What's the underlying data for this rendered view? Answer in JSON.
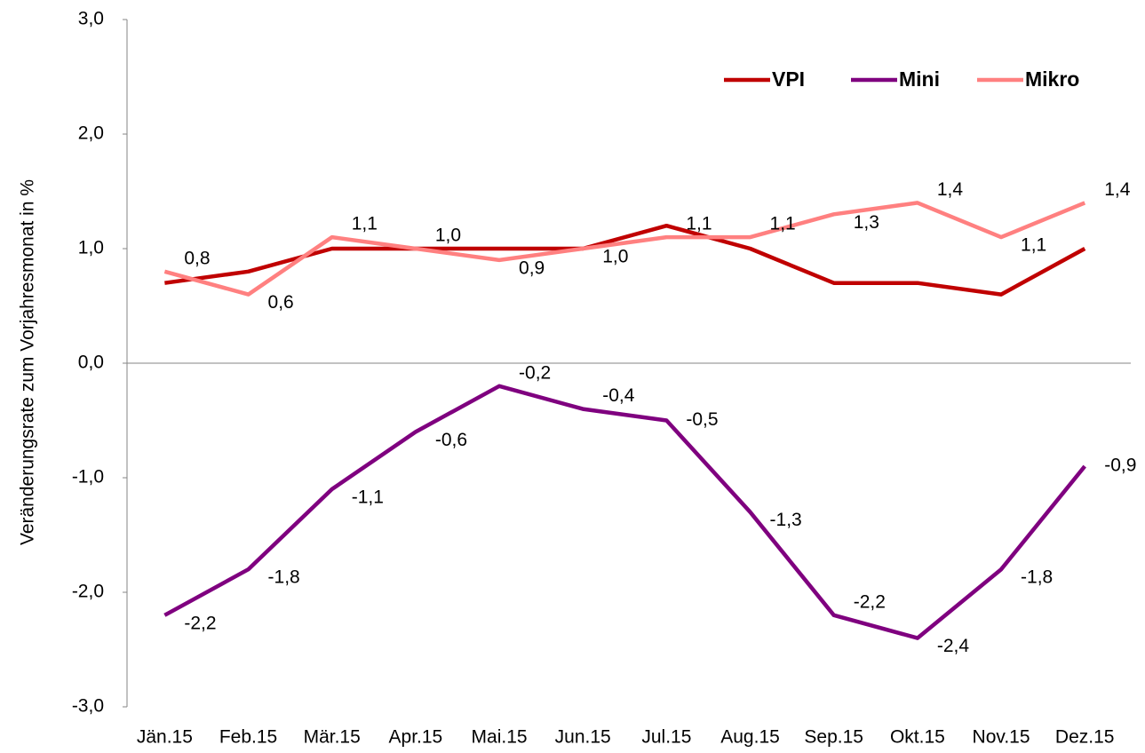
{
  "chart_data": {
    "type": "line",
    "y_label": "Veränderungsrate zum Vorjahresmonat in %",
    "categories": [
      "Jän.15",
      "Feb.15",
      "Mär.15",
      "Apr.15",
      "Mai.15",
      "Jun.15",
      "Jul.15",
      "Aug.15",
      "Sep.15",
      "Okt.15",
      "Nov.15",
      "Dez.15"
    ],
    "series": [
      {
        "name": "VPI",
        "color": "#c00000",
        "values": [
          0.7,
          0.8,
          1.0,
          1.0,
          1.0,
          1.0,
          1.2,
          1.0,
          0.7,
          0.7,
          0.6,
          1.0
        ]
      },
      {
        "name": "Mini",
        "color": "#7f007f",
        "values": [
          -2.2,
          -1.8,
          -1.1,
          -0.6,
          -0.2,
          -0.4,
          -0.5,
          -1.3,
          -2.2,
          -2.4,
          -1.8,
          -0.9
        ],
        "value_labels": [
          "-2,2",
          "-1,8",
          "-1,1",
          "-0,6",
          "-0,2",
          "-0,4",
          "-0,5",
          "-1,3",
          "-2,2",
          "-2,4",
          "-1,8",
          "-0,9"
        ]
      },
      {
        "name": "Mikro",
        "color": "#ff8080",
        "values": [
          0.8,
          0.6,
          1.1,
          1.0,
          0.9,
          1.0,
          1.1,
          1.1,
          1.3,
          1.4,
          1.1,
          1.4
        ],
        "value_labels": [
          "0,8",
          "0,6",
          "1,1",
          "1,0",
          "0,9",
          "1,0",
          "1,1",
          "1,1",
          "1,3",
          "1,4",
          "1,1",
          "1,4"
        ]
      }
    ],
    "ylim": [
      -3,
      3
    ],
    "yticks": [
      {
        "value": -3,
        "label": "-3,0"
      },
      {
        "value": -2,
        "label": "-2,0"
      },
      {
        "value": -1,
        "label": "-1,0"
      },
      {
        "value": 0,
        "label": "0,0"
      },
      {
        "value": 1,
        "label": "1,0"
      },
      {
        "value": 2,
        "label": "2,0"
      },
      {
        "value": 3,
        "label": "3,0"
      }
    ],
    "grid": false,
    "legend": "top-right"
  }
}
